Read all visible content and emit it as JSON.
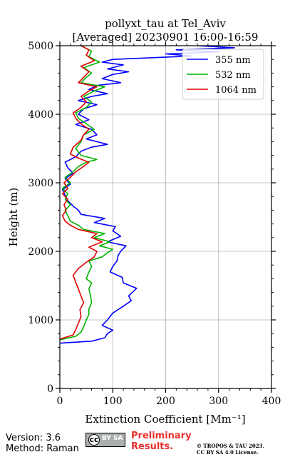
{
  "chart_data": {
    "type": "line",
    "title": "pollyxt_tau at Tel_Aviv",
    "subtitle": "[Averaged] 20230901 16:00-16:59",
    "xlabel": "Extinction Coefficient [Mm⁻¹]",
    "ylabel": "Height (m)",
    "xlim": [
      0,
      400
    ],
    "ylim": [
      0,
      5000
    ],
    "xticks": [
      "0",
      "100",
      "200",
      "300",
      "400"
    ],
    "yticks": [
      "0",
      "1000",
      "2000",
      "3000",
      "4000",
      "5000"
    ],
    "grid": true,
    "legend_position": "top-right",
    "series": [
      {
        "name": "355 nm",
        "color": "#0000ff",
        "points": [
          [
            0,
            660
          ],
          [
            60,
            690
          ],
          [
            85,
            740
          ],
          [
            90,
            800
          ],
          [
            100,
            850
          ],
          [
            80,
            920
          ],
          [
            90,
            1000
          ],
          [
            100,
            1100
          ],
          [
            120,
            1200
          ],
          [
            135,
            1280
          ],
          [
            130,
            1350
          ],
          [
            145,
            1460
          ],
          [
            120,
            1540
          ],
          [
            118,
            1620
          ],
          [
            95,
            1700
          ],
          [
            100,
            1780
          ],
          [
            108,
            1860
          ],
          [
            110,
            1940
          ],
          [
            115,
            2000
          ],
          [
            125,
            2080
          ],
          [
            90,
            2140
          ],
          [
            115,
            2220
          ],
          [
            100,
            2300
          ],
          [
            105,
            2360
          ],
          [
            65,
            2420
          ],
          [
            85,
            2480
          ],
          [
            40,
            2540
          ],
          [
            35,
            2600
          ],
          [
            25,
            2660
          ],
          [
            15,
            2740
          ],
          [
            10,
            2820
          ],
          [
            5,
            2900
          ],
          [
            20,
            2980
          ],
          [
            10,
            3060
          ],
          [
            25,
            3140
          ],
          [
            15,
            3220
          ],
          [
            10,
            3300
          ],
          [
            30,
            3380
          ],
          [
            40,
            3460
          ],
          [
            60,
            3520
          ],
          [
            90,
            3560
          ],
          [
            50,
            3640
          ],
          [
            70,
            3700
          ],
          [
            60,
            3780
          ],
          [
            30,
            3850
          ],
          [
            55,
            3920
          ],
          [
            35,
            4000
          ],
          [
            45,
            4080
          ],
          [
            70,
            4140
          ],
          [
            35,
            4200
          ],
          [
            60,
            4260
          ],
          [
            90,
            4300
          ],
          [
            55,
            4360
          ],
          [
            70,
            4420
          ],
          [
            115,
            4460
          ],
          [
            80,
            4520
          ],
          [
            100,
            4580
          ],
          [
            130,
            4620
          ],
          [
            90,
            4660
          ],
          [
            120,
            4720
          ],
          [
            80,
            4760
          ],
          [
            100,
            4800
          ],
          [
            250,
            4850
          ],
          [
            200,
            4880
          ],
          [
            300,
            4910
          ],
          [
            220,
            4940
          ],
          [
            330,
            4970
          ],
          [
            260,
            5000
          ]
        ]
      },
      {
        "name": "532 nm",
        "color": "#00b400",
        "points": [
          [
            0,
            710
          ],
          [
            30,
            760
          ],
          [
            40,
            820
          ],
          [
            45,
            900
          ],
          [
            50,
            1000
          ],
          [
            55,
            1080
          ],
          [
            55,
            1160
          ],
          [
            60,
            1250
          ],
          [
            58,
            1350
          ],
          [
            55,
            1450
          ],
          [
            60,
            1540
          ],
          [
            50,
            1600
          ],
          [
            55,
            1700
          ],
          [
            60,
            1780
          ],
          [
            55,
            1860
          ],
          [
            80,
            1920
          ],
          [
            90,
            1980
          ],
          [
            100,
            2030
          ],
          [
            75,
            2080
          ],
          [
            95,
            2140
          ],
          [
            65,
            2200
          ],
          [
            85,
            2260
          ],
          [
            45,
            2320
          ],
          [
            35,
            2380
          ],
          [
            20,
            2440
          ],
          [
            15,
            2520
          ],
          [
            10,
            2600
          ],
          [
            20,
            2680
          ],
          [
            10,
            2760
          ],
          [
            15,
            2840
          ],
          [
            5,
            2920
          ],
          [
            20,
            3000
          ],
          [
            10,
            3080
          ],
          [
            25,
            3160
          ],
          [
            35,
            3240
          ],
          [
            50,
            3300
          ],
          [
            70,
            3340
          ],
          [
            40,
            3400
          ],
          [
            30,
            3500
          ],
          [
            40,
            3600
          ],
          [
            45,
            3700
          ],
          [
            65,
            3780
          ],
          [
            50,
            3860
          ],
          [
            35,
            3940
          ],
          [
            30,
            4020
          ],
          [
            50,
            4100
          ],
          [
            60,
            4180
          ],
          [
            45,
            4260
          ],
          [
            65,
            4340
          ],
          [
            85,
            4400
          ],
          [
            40,
            4460
          ],
          [
            50,
            4540
          ],
          [
            60,
            4600
          ],
          [
            45,
            4680
          ],
          [
            75,
            4760
          ],
          [
            55,
            4840
          ],
          [
            60,
            4920
          ],
          [
            45,
            4980
          ]
        ]
      },
      {
        "name": "1064 nm",
        "color": "#e00000",
        "points": [
          [
            0,
            720
          ],
          [
            25,
            780
          ],
          [
            30,
            860
          ],
          [
            35,
            950
          ],
          [
            40,
            1050
          ],
          [
            38,
            1150
          ],
          [
            45,
            1250
          ],
          [
            40,
            1350
          ],
          [
            35,
            1450
          ],
          [
            30,
            1550
          ],
          [
            25,
            1650
          ],
          [
            35,
            1750
          ],
          [
            50,
            1840
          ],
          [
            65,
            1920
          ],
          [
            70,
            2000
          ],
          [
            55,
            2060
          ],
          [
            80,
            2140
          ],
          [
            60,
            2200
          ],
          [
            70,
            2260
          ],
          [
            35,
            2320
          ],
          [
            20,
            2380
          ],
          [
            10,
            2440
          ],
          [
            5,
            2520
          ],
          [
            12,
            2600
          ],
          [
            8,
            2680
          ],
          [
            15,
            2760
          ],
          [
            5,
            2840
          ],
          [
            15,
            2920
          ],
          [
            8,
            3000
          ],
          [
            20,
            3080
          ],
          [
            30,
            3160
          ],
          [
            45,
            3240
          ],
          [
            55,
            3300
          ],
          [
            35,
            3360
          ],
          [
            20,
            3420
          ],
          [
            25,
            3520
          ],
          [
            40,
            3620
          ],
          [
            45,
            3700
          ],
          [
            55,
            3780
          ],
          [
            40,
            3860
          ],
          [
            30,
            3940
          ],
          [
            25,
            4020
          ],
          [
            40,
            4100
          ],
          [
            50,
            4180
          ],
          [
            40,
            4260
          ],
          [
            55,
            4340
          ],
          [
            70,
            4400
          ],
          [
            35,
            4460
          ],
          [
            45,
            4540
          ],
          [
            55,
            4620
          ],
          [
            40,
            4700
          ],
          [
            65,
            4780
          ],
          [
            50,
            4860
          ],
          [
            55,
            4940
          ],
          [
            40,
            5000
          ]
        ]
      }
    ]
  },
  "footer": {
    "version": "Version: 3.6",
    "method": "Method: Raman",
    "license_badge": {
      "icon": "cc-by-sa-badge",
      "cc": "cc",
      "by": "BY",
      "sa": "SA"
    },
    "preliminary_line1": "Preliminary",
    "preliminary_line2": "Results.",
    "copyright_line1": "© TROPOS & TAU 2023.",
    "copyright_line2": "CC BY SA 4.0 License."
  }
}
